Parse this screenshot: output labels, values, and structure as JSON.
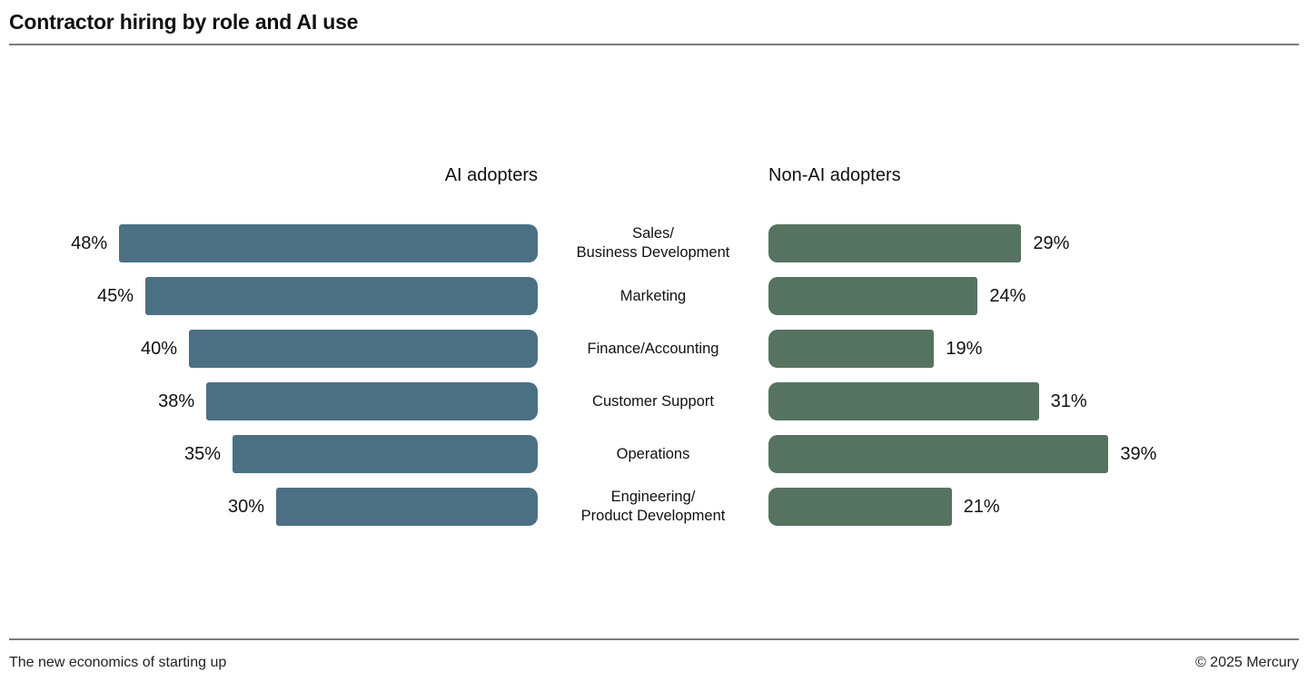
{
  "title": "Contractor hiring by role and AI use",
  "footer": {
    "left": "The new economics of starting up",
    "right": "© 2025 Mercury"
  },
  "colors": {
    "ai_bar": "#4b7084",
    "non_ai_bar": "#567361",
    "text": "#111111",
    "rule": "#7c7c7c",
    "background": "#ffffff"
  },
  "chart_data": {
    "type": "bar",
    "subtype": "diverging-horizontal-butterfly",
    "title": "Contractor hiring by role and AI use",
    "categories": [
      "Sales/\nBusiness Development",
      "Marketing",
      "Finance/Accounting",
      "Customer Support",
      "Operations",
      "Engineering/\nProduct Development"
    ],
    "series": [
      {
        "name": "AI adopters",
        "side": "left",
        "color": "#4b7084",
        "values": [
          48,
          45,
          40,
          38,
          35,
          30
        ]
      },
      {
        "name": "Non-AI adopters",
        "side": "right",
        "color": "#567361",
        "values": [
          29,
          24,
          19,
          31,
          39,
          21
        ]
      }
    ],
    "value_suffix": "%",
    "xlim": [
      0,
      50
    ],
    "grid": false,
    "legend_position": "column-headers",
    "value_labels": "outside-ends"
  }
}
